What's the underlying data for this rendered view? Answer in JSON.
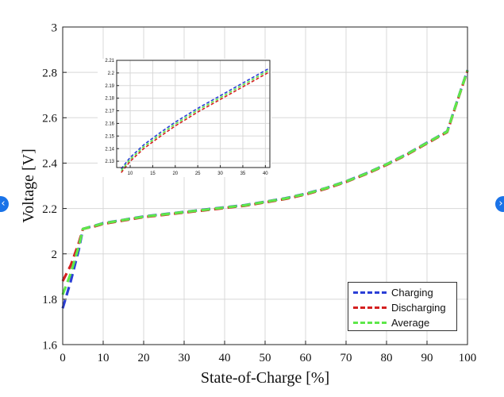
{
  "chart_data": [
    {
      "type": "line",
      "title": "",
      "xlabel": "State-of-Charge [%]",
      "ylabel": "Voltage [V]",
      "xlim": [
        0,
        100
      ],
      "ylim": [
        1.6,
        3.0
      ],
      "xticks": [
        0,
        10,
        20,
        30,
        40,
        50,
        60,
        70,
        80,
        90,
        100
      ],
      "xtick_labels": [
        "0",
        "10",
        "20",
        "30",
        "40",
        "50",
        "60",
        "70",
        "80",
        "90",
        "100"
      ],
      "yticks": [
        1.6,
        1.8,
        2.0,
        2.2,
        2.4,
        2.6,
        2.8,
        3.0
      ],
      "ytick_labels": [
        "1.6",
        "1.8",
        "2",
        "2.2",
        "2.4",
        "2.6",
        "2.8",
        "3"
      ],
      "grid": true,
      "legend_position": "bottom-right",
      "series": [
        {
          "name": "Charging",
          "color": "#2b3fd6",
          "x": [
            0,
            2,
            4,
            5,
            8,
            10,
            15,
            20,
            25,
            30,
            35,
            40,
            45,
            50,
            55,
            60,
            65,
            70,
            75,
            80,
            85,
            90,
            93,
            95,
            97,
            100
          ],
          "y": [
            1.76,
            1.88,
            2.02,
            2.11,
            2.125,
            2.135,
            2.15,
            2.165,
            2.175,
            2.185,
            2.195,
            2.205,
            2.215,
            2.23,
            2.245,
            2.265,
            2.29,
            2.32,
            2.355,
            2.395,
            2.44,
            2.49,
            2.52,
            2.54,
            2.65,
            2.81
          ]
        },
        {
          "name": "Discharging",
          "color": "#d42020",
          "x": [
            0,
            2,
            4,
            5,
            8,
            10,
            15,
            20,
            25,
            30,
            35,
            40,
            45,
            50,
            55,
            60,
            65,
            70,
            75,
            80,
            85,
            90,
            93,
            95,
            97,
            100
          ],
          "y": [
            1.88,
            1.95,
            2.05,
            2.11,
            2.122,
            2.132,
            2.147,
            2.162,
            2.172,
            2.182,
            2.192,
            2.202,
            2.212,
            2.227,
            2.242,
            2.262,
            2.287,
            2.317,
            2.352,
            2.392,
            2.437,
            2.487,
            2.517,
            2.537,
            2.647,
            2.807
          ]
        },
        {
          "name": "Average",
          "color": "#5ee84a",
          "x": [
            0,
            2,
            4,
            5,
            8,
            10,
            15,
            20,
            25,
            30,
            35,
            40,
            45,
            50,
            55,
            60,
            65,
            70,
            75,
            80,
            85,
            90,
            93,
            95,
            97,
            100
          ],
          "y": [
            1.82,
            1.915,
            2.035,
            2.11,
            2.124,
            2.134,
            2.149,
            2.164,
            2.174,
            2.184,
            2.194,
            2.204,
            2.214,
            2.229,
            2.244,
            2.264,
            2.289,
            2.319,
            2.354,
            2.394,
            2.439,
            2.489,
            2.519,
            2.539,
            2.649,
            2.809
          ]
        }
      ]
    },
    {
      "type": "line",
      "title": "",
      "xlabel": "",
      "ylabel": "",
      "xlim": [
        7,
        41
      ],
      "ylim": [
        2.125,
        2.21
      ],
      "xticks": [
        10,
        15,
        20,
        25,
        30,
        35,
        40
      ],
      "xtick_labels": [
        "10",
        "15",
        "20",
        "25",
        "30",
        "35",
        "40"
      ],
      "yticks": [
        2.13,
        2.14,
        2.15,
        2.16,
        2.17,
        2.18,
        2.19,
        2.2,
        2.21
      ],
      "ytick_labels": [
        "2.13",
        "2.14",
        "2.15",
        "2.16",
        "2.17",
        "2.18",
        "2.19",
        "2.2",
        "2.21"
      ],
      "grid": true,
      "series": [
        {
          "color": "#2b3fd6",
          "x": [
            8,
            10,
            13,
            16,
            20,
            25,
            30,
            35,
            41
          ],
          "y": [
            2.124,
            2.133,
            2.143,
            2.151,
            2.161,
            2.172,
            2.182,
            2.192,
            2.204
          ]
        },
        {
          "color": "#d42020",
          "x": [
            8,
            10,
            13,
            16,
            20,
            25,
            30,
            35,
            41
          ],
          "y": [
            2.121,
            2.13,
            2.14,
            2.148,
            2.158,
            2.169,
            2.179,
            2.189,
            2.201
          ]
        },
        {
          "color": "#5ee84a",
          "x": [
            8,
            10,
            13,
            16,
            20,
            25,
            30,
            35,
            41
          ],
          "y": [
            2.1225,
            2.1315,
            2.1415,
            2.1495,
            2.1595,
            2.1705,
            2.1805,
            2.1905,
            2.2025
          ]
        }
      ]
    }
  ],
  "ui": {
    "prev_icon": "‹",
    "next_icon": "›"
  }
}
